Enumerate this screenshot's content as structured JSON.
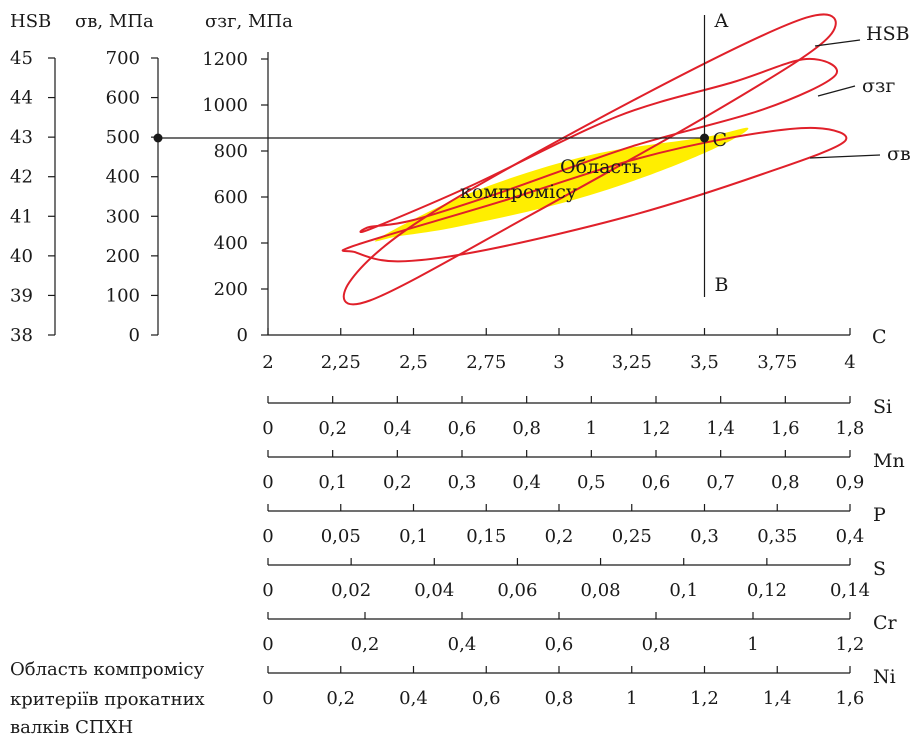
{
  "chart_data": {
    "type": "nomogram",
    "headers": {
      "hsb": "HSB",
      "sigma_v": "σв, МПа",
      "sigma_zg": "σзг, МПа"
    },
    "left_axes": [
      {
        "name": "HSB",
        "ticks": [
          "45",
          "44",
          "43",
          "42",
          "41",
          "40",
          "39",
          "38"
        ]
      },
      {
        "name": "σв",
        "ticks": [
          "700",
          "600",
          "500",
          "400",
          "300",
          "200",
          "100",
          "0"
        ]
      }
    ],
    "main_y_axis": {
      "name": "σзг",
      "ticks": [
        "1200",
        "1000",
        "800",
        "600",
        "400",
        "200",
        "0"
      ],
      "range": [
        0,
        1300
      ]
    },
    "x_axis": {
      "label": "C",
      "ticks": [
        "2",
        "2,25",
        "2,5",
        "2,75",
        "3",
        "3,25",
        "3,5",
        "3,75",
        "4"
      ],
      "range": [
        2,
        4
      ]
    },
    "lines": {
      "vertical_x": 3.5,
      "vertical_top_label": "A",
      "vertical_bottom_label": "B",
      "horizontal_y": 850,
      "point_label": "C"
    },
    "regions": [
      {
        "name": "HSB",
        "label": "HSB",
        "points": [
          [
            2.35,
            150
          ],
          [
            2.9,
            520
          ],
          [
            3.6,
            1020
          ],
          [
            3.93,
            1300
          ],
          [
            3.85,
            1380
          ],
          [
            3.3,
            1050
          ],
          [
            2.55,
            520
          ],
          [
            2.28,
            230
          ]
        ]
      },
      {
        "name": "σзг",
        "label": "σзг",
        "points": [
          [
            2.35,
            460
          ],
          [
            2.7,
            650
          ],
          [
            3.2,
            950
          ],
          [
            3.6,
            1100
          ],
          [
            3.85,
            1200
          ],
          [
            3.95,
            1130
          ],
          [
            3.7,
            980
          ],
          [
            3.25,
            820
          ],
          [
            2.8,
            620
          ],
          [
            2.5,
            500
          ],
          [
            2.35,
            470
          ]
        ]
      },
      {
        "name": "σв",
        "label": "σв",
        "points": [
          [
            2.3,
            390
          ],
          [
            2.8,
            580
          ],
          [
            3.25,
            760
          ],
          [
            3.6,
            860
          ],
          [
            3.88,
            900
          ],
          [
            3.98,
            840
          ],
          [
            3.7,
            700
          ],
          [
            3.25,
            520
          ],
          [
            2.75,
            370
          ],
          [
            2.45,
            320
          ],
          [
            2.3,
            360
          ]
        ]
      }
    ],
    "compromise": {
      "label_line1": "Область",
      "label_line2": "компромісу",
      "points": [
        [
          2.38,
          420
        ],
        [
          2.7,
          620
        ],
        [
          3.1,
          780
        ],
        [
          3.5,
          860
        ],
        [
          3.65,
          900
        ],
        [
          3.55,
          820
        ],
        [
          3.3,
          690
        ],
        [
          3.0,
          570
        ],
        [
          2.65,
          470
        ],
        [
          2.45,
          430
        ]
      ]
    },
    "secondary_axes": [
      {
        "element": "Si",
        "ticks": [
          "0",
          "0,2",
          "0,4",
          "0,6",
          "0,8",
          "1",
          "1,2",
          "1,4",
          "1,6",
          "1,8"
        ],
        "range": [
          0,
          1.8
        ]
      },
      {
        "element": "Mn",
        "ticks": [
          "0",
          "0,1",
          "0,2",
          "0,3",
          "0,4",
          "0,5",
          "0,6",
          "0,7",
          "0,8",
          "0,9"
        ],
        "range": [
          0,
          0.9
        ]
      },
      {
        "element": "P",
        "ticks": [
          "0",
          "0,05",
          "0,1",
          "0,15",
          "0,2",
          "0,25",
          "0,3",
          "0,35",
          "0,4"
        ],
        "range": [
          0,
          0.4
        ]
      },
      {
        "element": "S",
        "ticks": [
          "0",
          "0,02",
          "0,04",
          "0,06",
          "0,08",
          "0,1",
          "0,12",
          "0,14"
        ],
        "range": [
          0,
          0.14
        ]
      },
      {
        "element": "Cr",
        "ticks": [
          "0",
          "0,2",
          "0,4",
          "0,6",
          "0,8",
          "1",
          "1,2"
        ],
        "range": [
          0,
          1.2
        ]
      },
      {
        "element": "Ni",
        "ticks": [
          "0",
          "0,2",
          "0,4",
          "0,6",
          "0,8",
          "1",
          "1,2",
          "1,4",
          "1,6"
        ],
        "range": [
          0,
          1.6
        ]
      }
    ],
    "caption_lines": [
      "Область компромісу",
      "критеріїв прокатних",
      "валків СПХН"
    ],
    "colors": {
      "ellipse": "#e0202a",
      "region_fill": "#ffee00",
      "ink": "#1a1a1a"
    }
  }
}
